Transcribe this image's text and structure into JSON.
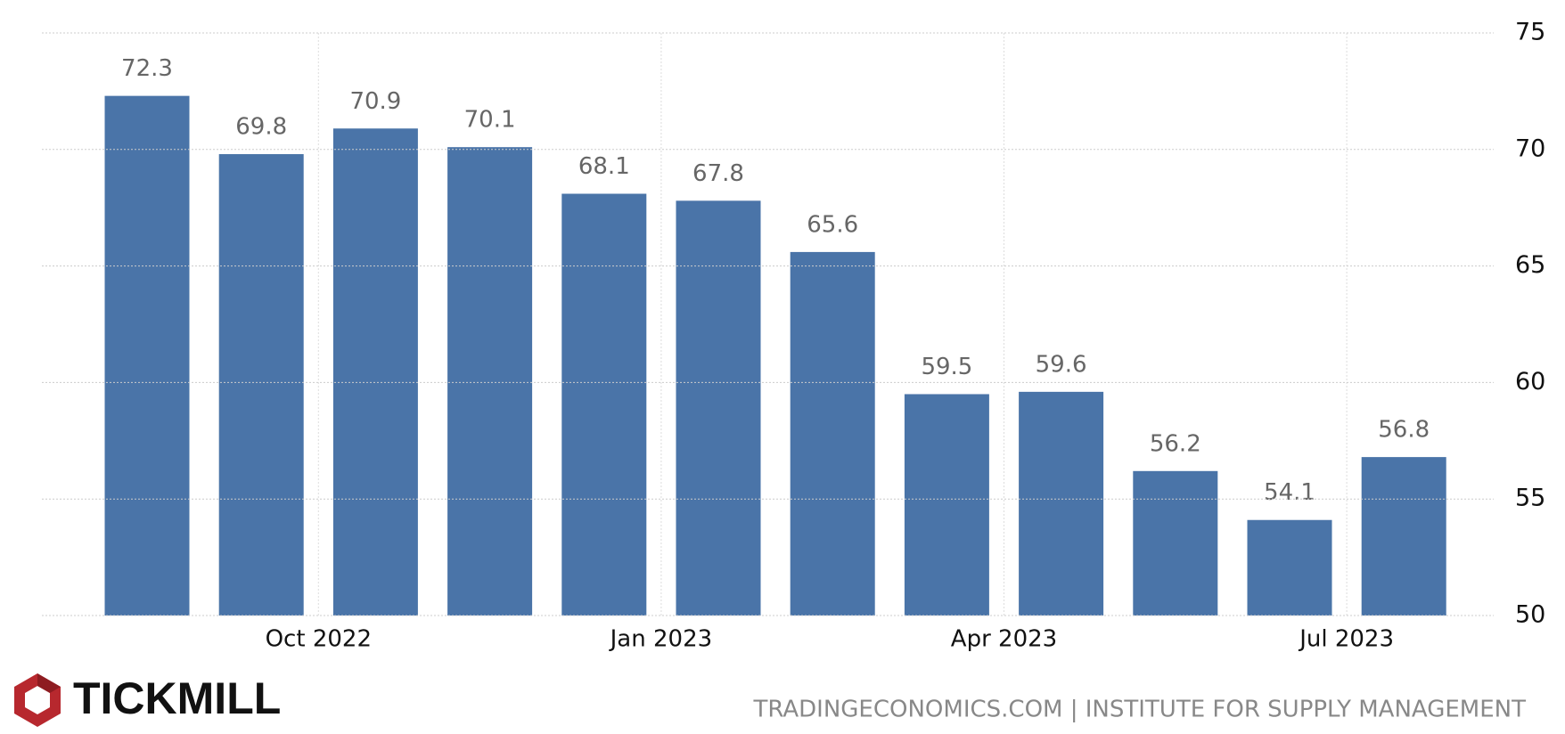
{
  "chart_data": {
    "type": "bar",
    "categories": [
      null,
      "Oct 2022",
      null,
      null,
      "Jan 2023",
      null,
      null,
      "Apr 2023",
      null,
      null,
      "Jul 2023",
      null
    ],
    "values": [
      72.3,
      69.8,
      70.9,
      70.1,
      68.1,
      67.8,
      65.6,
      59.5,
      59.6,
      56.2,
      54.1,
      56.8
    ],
    "color": "#4a74a8",
    "ylim": [
      50,
      75
    ],
    "yticks": [
      50,
      55,
      60,
      65,
      70,
      75
    ],
    "grid": true,
    "brand": "TICKMILL",
    "source": "TRADINGECONOMICS.COM | INSTITUTE FOR SUPPLY MANAGEMENT"
  }
}
